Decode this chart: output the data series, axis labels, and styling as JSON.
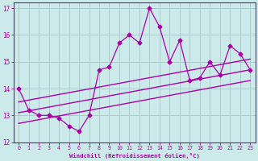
{
  "x": [
    0,
    1,
    2,
    3,
    4,
    5,
    6,
    7,
    8,
    9,
    10,
    11,
    12,
    13,
    14,
    15,
    16,
    17,
    18,
    19,
    20,
    21,
    22,
    23
  ],
  "y_main": [
    14.0,
    13.2,
    13.0,
    13.0,
    12.9,
    12.6,
    12.4,
    13.0,
    14.7,
    14.8,
    15.7,
    16.0,
    15.7,
    17.0,
    16.3,
    15.0,
    15.8,
    14.3,
    14.4,
    15.0,
    14.5,
    15.6,
    15.3,
    14.7
  ],
  "line_color": "#aa00aa",
  "bg_color": "#cceaea",
  "grid_color": "#aacccc",
  "xlabel": "Windchill (Refroidissement éolien,°C)",
  "ylim": [
    12,
    17.2
  ],
  "xlim": [
    -0.5,
    23.5
  ],
  "yticks": [
    12,
    13,
    14,
    15,
    16,
    17
  ],
  "xticks": [
    0,
    1,
    2,
    3,
    4,
    5,
    6,
    7,
    8,
    9,
    10,
    11,
    12,
    13,
    14,
    15,
    16,
    17,
    18,
    19,
    20,
    21,
    22,
    23
  ],
  "trend_x0": 0,
  "trend_x1": 23,
  "trend_y0_mid": 13.1,
  "trend_y1_mid": 14.7,
  "trend_y0_upper": 13.5,
  "trend_y1_upper": 15.1,
  "trend_y0_lower": 12.7,
  "trend_y1_lower": 14.3
}
